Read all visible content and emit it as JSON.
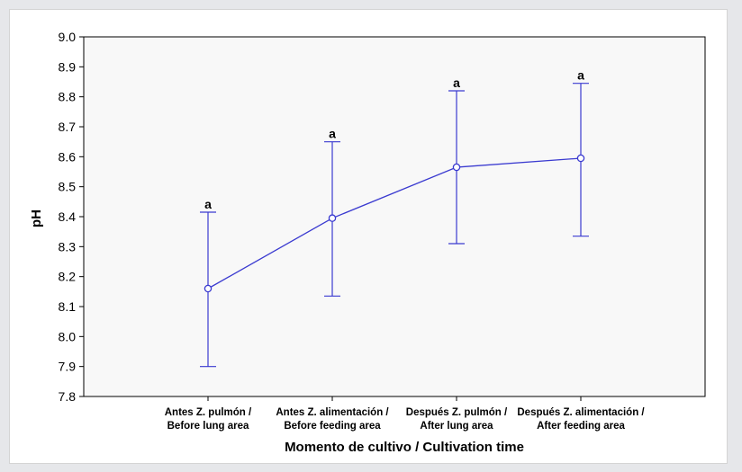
{
  "chart_data": {
    "type": "line",
    "xlabel": "Momento de cultivo / Cultivation time",
    "ylabel": "pH",
    "ylim": [
      7.8,
      9.0
    ],
    "yticks": [
      "7.8",
      "7.9",
      "8.0",
      "8.1",
      "8.2",
      "8.3",
      "8.4",
      "8.5",
      "8.6",
      "8.7",
      "8.8",
      "8.9",
      "9.0"
    ],
    "grid": false,
    "categories": [
      {
        "line1": "Antes Z. pulmón /",
        "line2": "Before lung area"
      },
      {
        "line1": "Antes Z. alimentación /",
        "line2": "Before feeding area"
      },
      {
        "line1": "Después Z. pulmón /",
        "line2": "After lung area"
      },
      {
        "line1": "Después Z. alimentación /",
        "line2": "After feeding area"
      }
    ],
    "series": [
      {
        "values": [
          8.16,
          8.395,
          8.565,
          8.595
        ],
        "error_low": [
          7.9,
          8.135,
          8.31,
          8.335
        ],
        "error_high": [
          8.415,
          8.65,
          8.82,
          8.845
        ],
        "labels": [
          "a",
          "a",
          "a",
          "a"
        ],
        "color": "#3a3ad0"
      }
    ]
  }
}
